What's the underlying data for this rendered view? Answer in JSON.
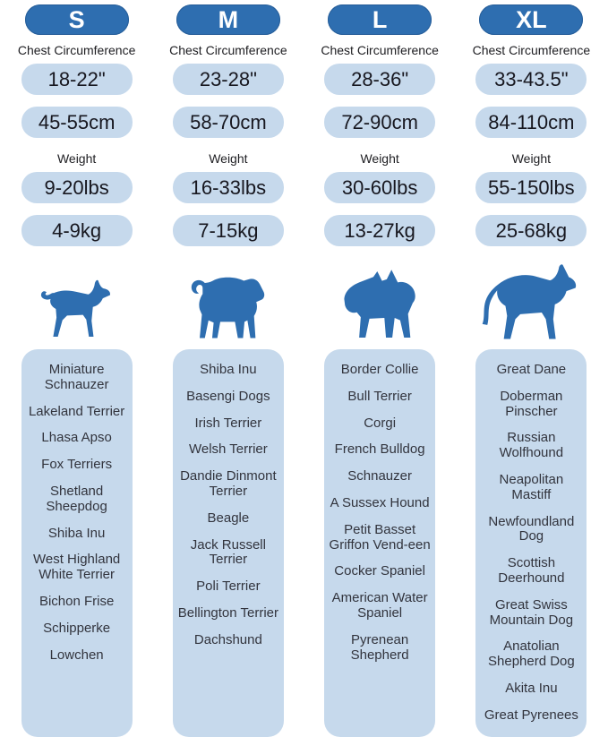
{
  "labels": {
    "chest_circumference": "Chest Circumference",
    "weight": "Weight"
  },
  "colors": {
    "primary_blue": "#2e6eb0",
    "light_blue": "#c6d9ec",
    "size_text": "#ffffff",
    "value_text": "#17171f",
    "breed_text": "#32343d"
  },
  "columns": [
    {
      "size": "S",
      "icon": "small-dog-silhouette-icon",
      "chest_in": "18-22\"",
      "chest_cm": "45-55cm",
      "weight_lbs": "9-20lbs",
      "weight_kg": "4-9kg",
      "breeds": [
        "Miniature Schnauzer",
        "Lakeland Terrier",
        "Lhasa Apso",
        "Fox Terriers",
        "Shetland Sheepdog",
        "Shiba Inu",
        "West Highland White Terrier",
        "Bichon Frise",
        "Schipperke",
        "Lowchen"
      ]
    },
    {
      "size": "M",
      "icon": "medium-dog-beagle-silhouette-icon",
      "chest_in": "23-28\"",
      "chest_cm": "58-70cm",
      "weight_lbs": "16-33lbs",
      "weight_kg": "7-15kg",
      "breeds": [
        "Shiba Inu",
        "Basengi Dogs",
        "Irish Terrier",
        "Welsh Terrier",
        "Dandie Dinmont Terrier",
        "Beagle",
        "Jack Russell Terrier",
        "Poli Terrier",
        "Bellington Terrier",
        "Dachshund"
      ]
    },
    {
      "size": "L",
      "icon": "large-dog-bulldog-silhouette-icon",
      "chest_in": "28-36\"",
      "chest_cm": "72-90cm",
      "weight_lbs": "30-60lbs",
      "weight_kg": "13-27kg",
      "breeds": [
        "Border Collie",
        "Bull Terrier",
        "Corgi",
        "French Bulldog",
        "Schnauzer",
        "A Sussex Hound",
        "Petit Basset Griffon Vend-een",
        "Cocker Spaniel",
        "American Water Spaniel",
        "Pyrenean Shepherd"
      ]
    },
    {
      "size": "XL",
      "icon": "xlarge-dog-husky-silhouette-icon",
      "chest_in": "33-43.5\"",
      "chest_cm": "84-110cm",
      "weight_lbs": "55-150lbs",
      "weight_kg": "25-68kg",
      "breeds": [
        "Great Dane",
        "Doberman Pinscher",
        "Russian Wolfhound",
        "Neapolitan Mastiff",
        "Newfoundland Dog",
        "Scottish Deerhound",
        "Great Swiss Mountain Dog",
        "Anatolian Shepherd Dog",
        "Akita Inu",
        "Great Pyrenees"
      ]
    }
  ],
  "chart_data": {
    "type": "table",
    "columns": [
      "S",
      "M",
      "L",
      "XL"
    ],
    "rows": [
      {
        "label": "Chest Circumference (inches)",
        "values": [
          "18-22\"",
          "23-28\"",
          "28-36\"",
          "33-43.5\""
        ]
      },
      {
        "label": "Chest Circumference (cm)",
        "values": [
          "45-55cm",
          "58-70cm",
          "72-90cm",
          "84-110cm"
        ]
      },
      {
        "label": "Weight (lbs)",
        "values": [
          "9-20lbs",
          "16-33lbs",
          "30-60lbs",
          "55-150lbs"
        ]
      },
      {
        "label": "Weight (kg)",
        "values": [
          "4-9kg",
          "7-15kg",
          "13-27kg",
          "25-68kg"
        ]
      }
    ]
  }
}
